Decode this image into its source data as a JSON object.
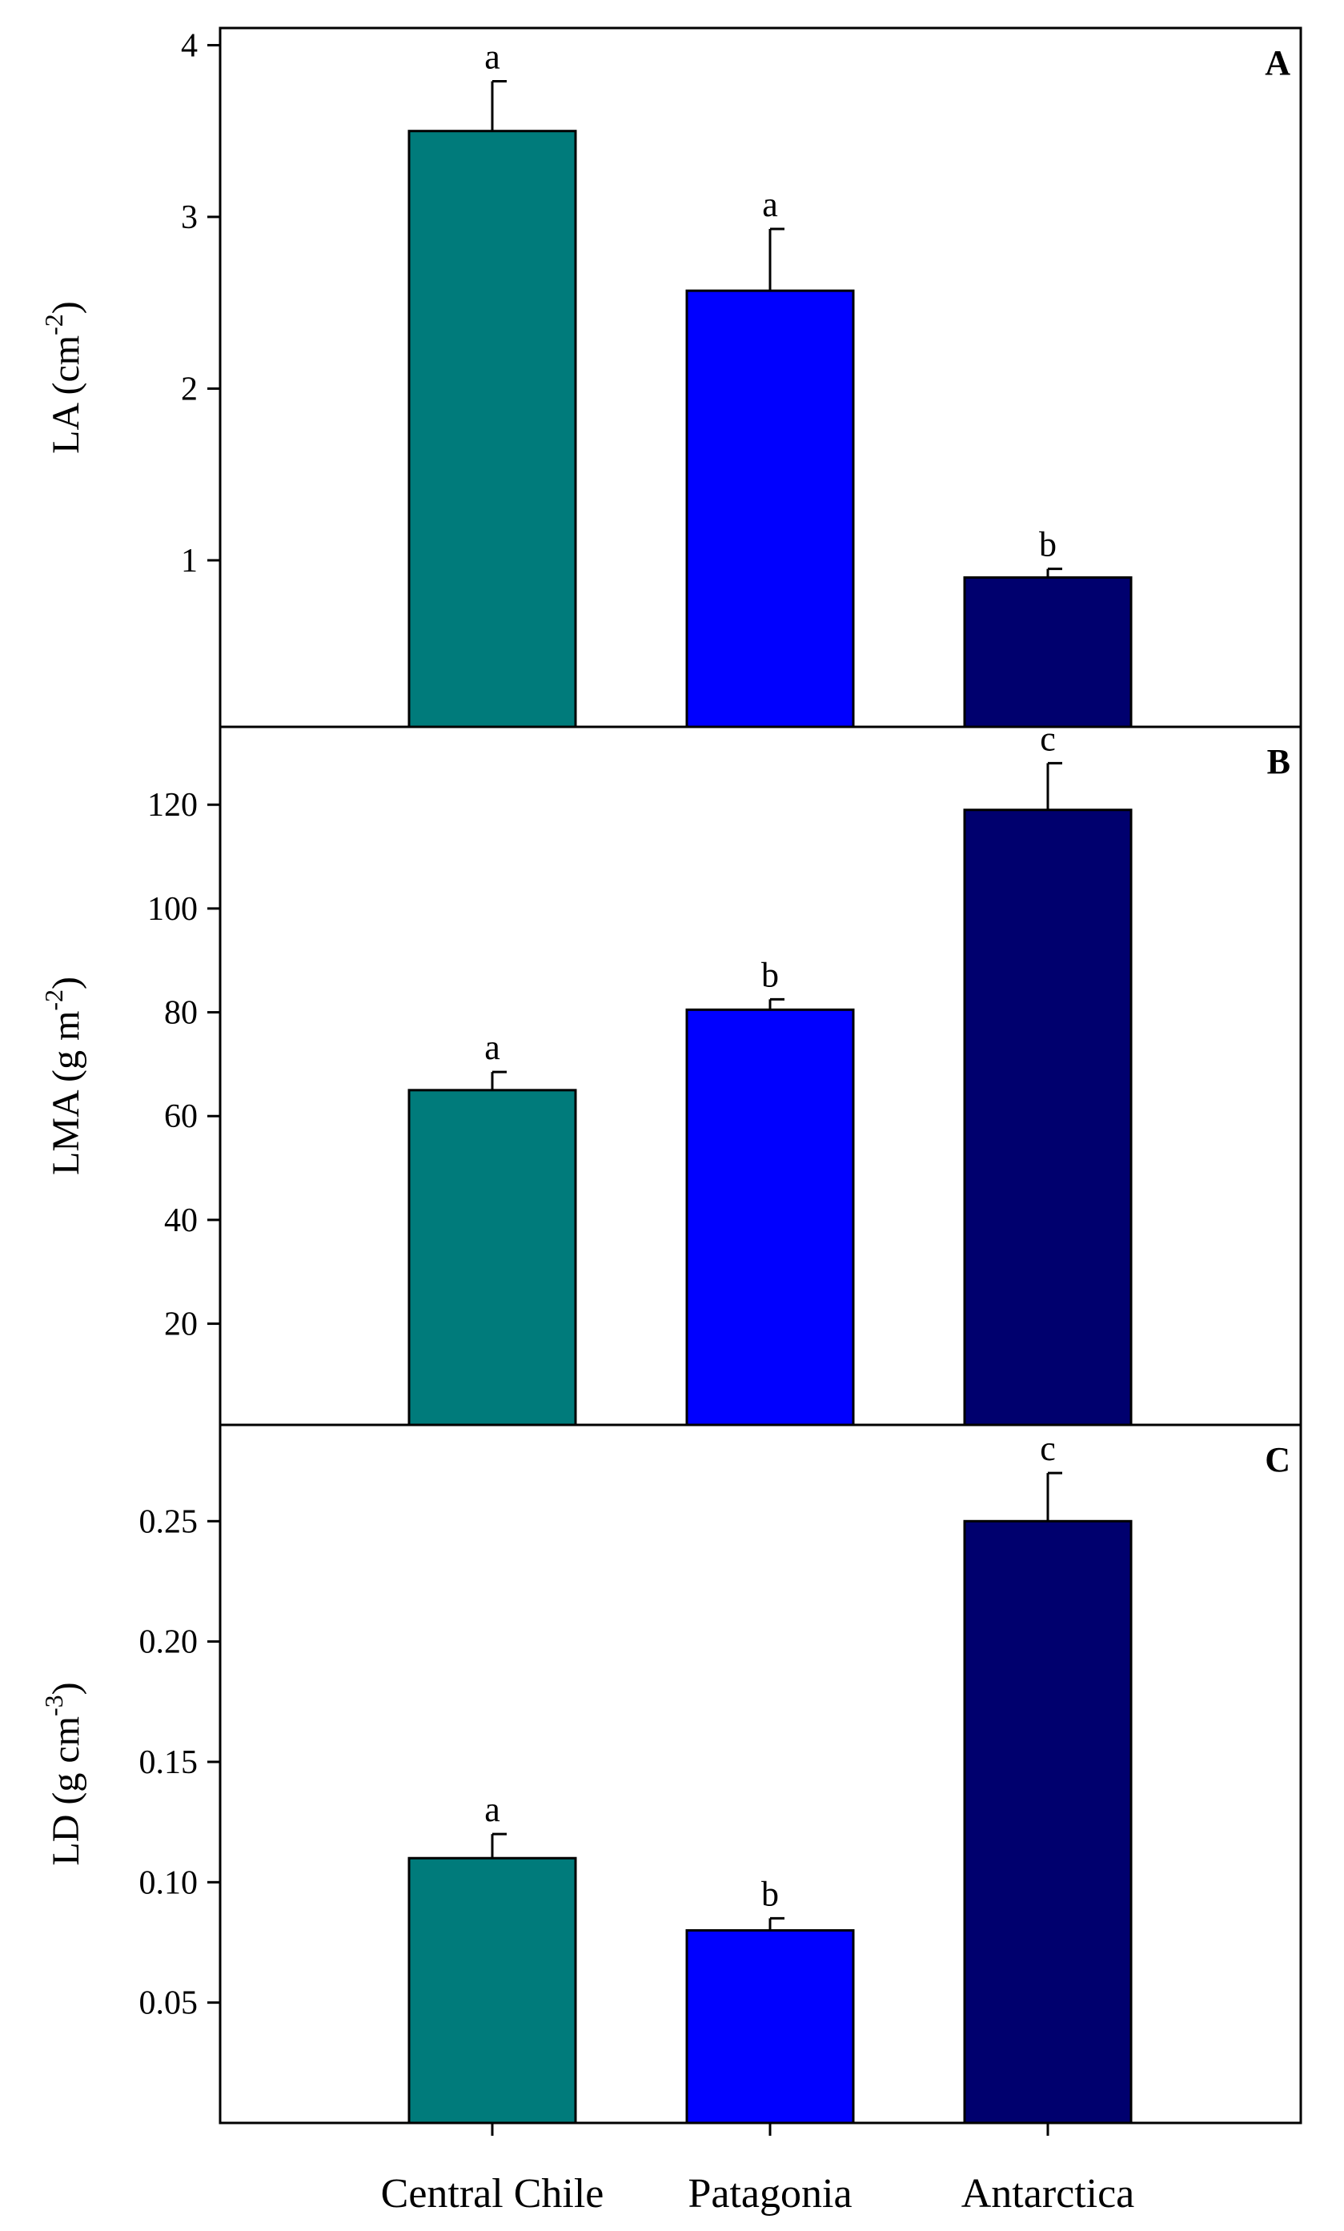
{
  "chart_data": [
    {
      "type": "bar",
      "panel": "A",
      "ylabel": "LA",
      "yunit_base": "(cm",
      "yunit_exp": "-2",
      "yunit_close": ")",
      "categories": [
        "Central Chile",
        "Patagonia",
        "Antarctica"
      ],
      "values": [
        3.5,
        2.57,
        0.9
      ],
      "errors": [
        0.29,
        0.36,
        0.05
      ],
      "significance": [
        "a",
        "a",
        "b"
      ],
      "ylim": [
        0.03,
        4.1
      ],
      "yticks": [
        1,
        2,
        3,
        4
      ],
      "ytick_labels": [
        "1",
        "2",
        "3",
        "4"
      ]
    },
    {
      "type": "bar",
      "panel": "B",
      "ylabel": "LMA",
      "yunit_base": "(g m",
      "yunit_exp": "-2",
      "yunit_close": ")",
      "categories": [
        "Central Chile",
        "Patagonia",
        "Antarctica"
      ],
      "values": [
        65,
        80.5,
        119
      ],
      "errors": [
        3.5,
        2.0,
        9.0
      ],
      "significance": [
        "a",
        "b",
        "c"
      ],
      "ylim": [
        0.5,
        135
      ],
      "yticks": [
        20,
        40,
        60,
        80,
        100,
        120
      ],
      "ytick_labels": [
        "20",
        "40",
        "60",
        "80",
        "100",
        "120"
      ]
    },
    {
      "type": "bar",
      "panel": "C",
      "ylabel": "LD",
      "yunit_base": "(g cm",
      "yunit_exp": "-3",
      "yunit_close": ")",
      "categories": [
        "Central Chile",
        "Patagonia",
        "Antarctica"
      ],
      "values": [
        0.11,
        0.08,
        0.25
      ],
      "errors": [
        0.01,
        0.005,
        0.02
      ],
      "significance": [
        "a",
        "b",
        "c"
      ],
      "ylim": [
        0.0,
        0.29
      ],
      "yticks": [
        0.05,
        0.1,
        0.15,
        0.2,
        0.25
      ],
      "ytick_labels": [
        "0.05",
        "0.10",
        "0.15",
        "0.20",
        "0.25"
      ]
    }
  ],
  "x_categories": [
    "Central Chile",
    "Patagonia",
    "Antarctica"
  ],
  "colors": {
    "Central Chile": "#007B7B",
    "Patagonia": "#0000FF",
    "Antarctica": "#00006E",
    "frame": "#000000"
  }
}
